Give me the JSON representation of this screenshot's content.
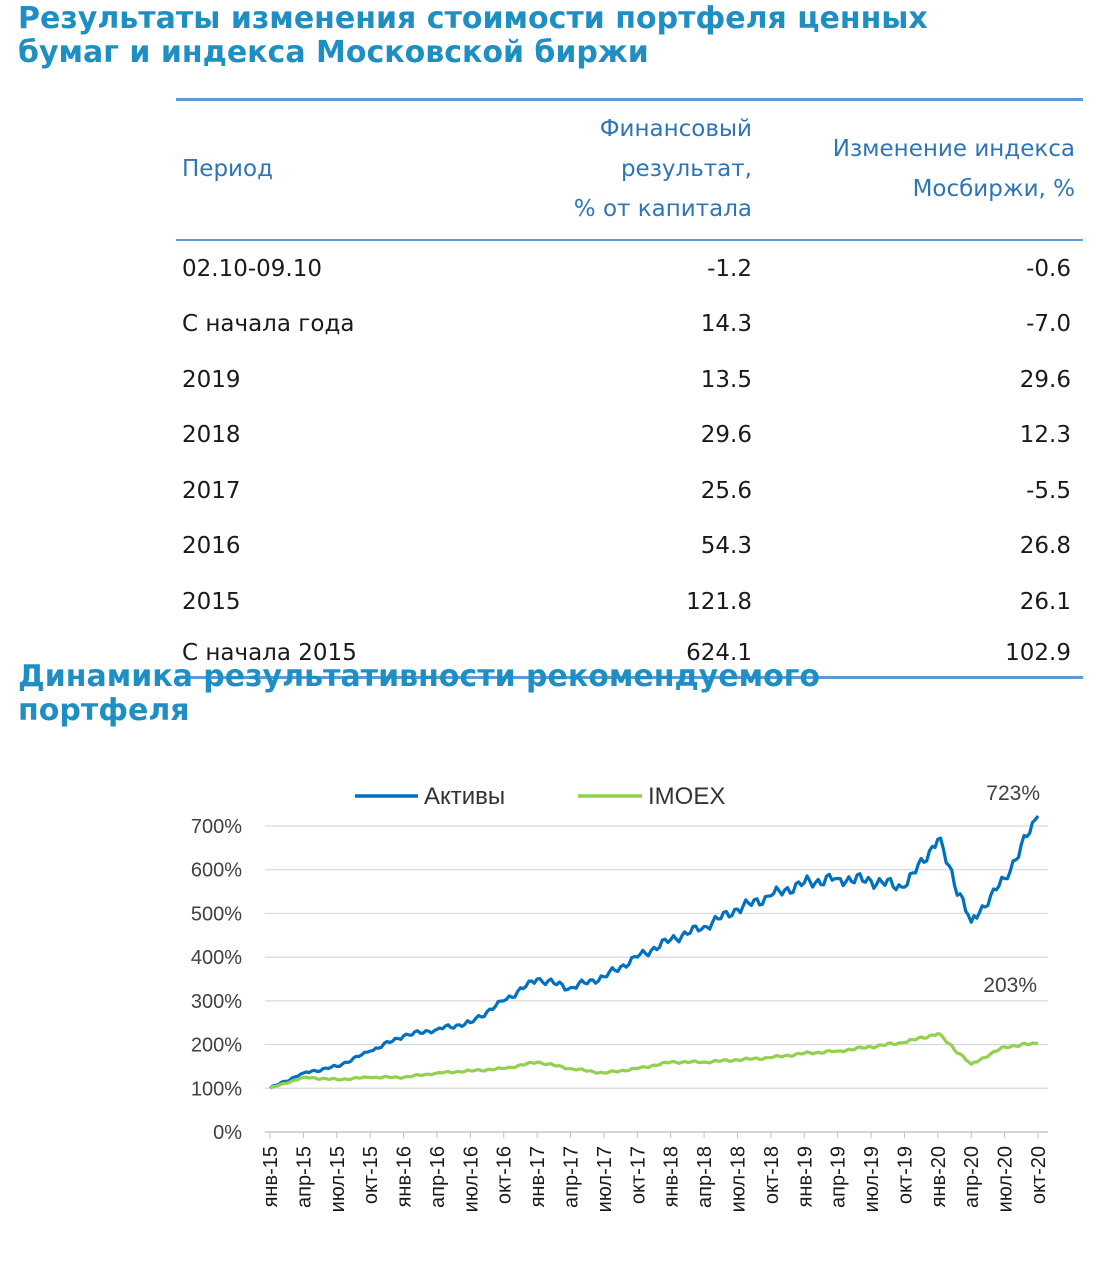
{
  "heading1": "Результаты изменения стоимости портфеля ценных бумаг и индекса Московской биржи",
  "heading2": "Динамика результативности рекомендуемого портфеля",
  "table": {
    "headers": {
      "period": "Период",
      "fin_line1": "Финансовый результат,",
      "fin_line2": "% от капитала",
      "idx_line1": "Изменение индекса",
      "idx_line2": "Мосбиржи, %"
    },
    "rows": [
      {
        "period": "02.10-09.10",
        "fin": "-1.2",
        "idx": "-0.6"
      },
      {
        "period": "С начала года",
        "fin": "14.3",
        "idx": "-7.0"
      },
      {
        "period": "2019",
        "fin": "13.5",
        "idx": "29.6"
      },
      {
        "period": "2018",
        "fin": "29.6",
        "idx": "12.3"
      },
      {
        "period": "2017",
        "fin": "25.6",
        "idx": "-5.5"
      },
      {
        "period": "2016",
        "fin": "54.3",
        "idx": "26.8"
      },
      {
        "period": "2015",
        "fin": "121.8",
        "idx": "26.1"
      },
      {
        "period": "С начала 2015",
        "fin": "624.1",
        "idx": "102.9"
      }
    ]
  },
  "chart_data": {
    "type": "line",
    "x": [
      "янв-15",
      "апр-15",
      "июл-15",
      "окт-15",
      "янв-16",
      "апр-16",
      "июл-16",
      "окт-16",
      "янв-17",
      "апр-17",
      "июл-17",
      "окт-17",
      "янв-18",
      "апр-18",
      "июл-18",
      "окт-18",
      "янв-19",
      "апр-19",
      "июл-19",
      "окт-19",
      "янв-20",
      "апр-20",
      "июл-20",
      "окт-20"
    ],
    "yticks": [
      "0%",
      "100%",
      "200%",
      "300%",
      "400%",
      "500%",
      "600%",
      "700%"
    ],
    "ylim": [
      0,
      700
    ],
    "grid": true,
    "legend": "top",
    "series": [
      {
        "name": "Активы",
        "color": "#0070c0",
        "values": [
          100,
          135,
          150,
          185,
          220,
          235,
          250,
          300,
          350,
          330,
          355,
          400,
          440,
          470,
          510,
          540,
          570,
          580,
          575,
          560,
          670,
          480,
          580,
          723
        ]
      },
      {
        "name": "IMOEX",
        "color": "#92d050",
        "values": [
          100,
          125,
          120,
          125,
          125,
          135,
          140,
          145,
          160,
          145,
          135,
          145,
          160,
          160,
          165,
          170,
          180,
          185,
          195,
          205,
          225,
          155,
          195,
          203
        ]
      }
    ],
    "annotations": [
      "723%",
      "203%"
    ]
  }
}
